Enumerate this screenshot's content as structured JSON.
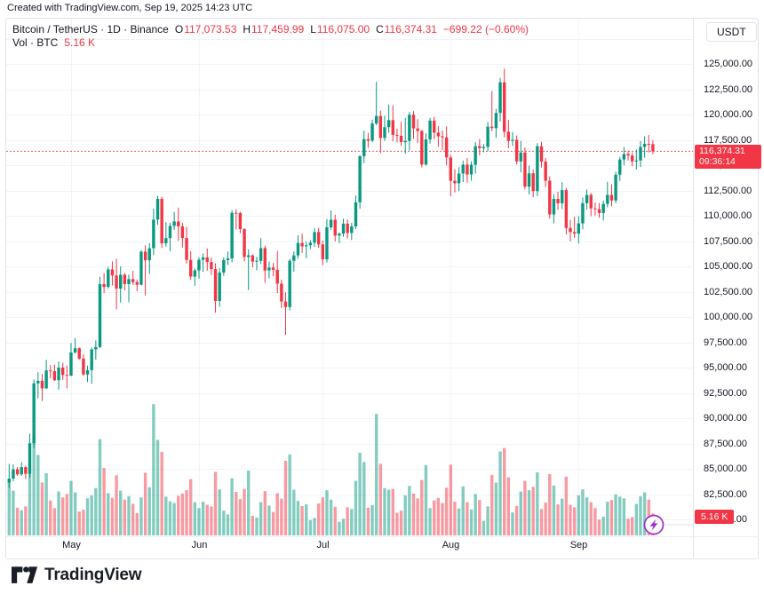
{
  "credit_line": "Created with TradingView.com, Sep 19, 2025 14:23 UTC",
  "header": {
    "symbol_line": "Bitcoin / TetherUS · 1D · Binance",
    "ohlc": {
      "o_label": "O",
      "o": "117,073.53",
      "h_label": "H",
      "h": "117,459.99",
      "l_label": "L",
      "l": "116,075.00",
      "c_label": "C",
      "c": "116,374.31",
      "change": "−699.22 (−0.60%)"
    },
    "volume_row": {
      "label": "Vol · BTC",
      "value": "5.16 K"
    }
  },
  "y_axis": {
    "currency_button": "USDT",
    "ticks": [
      {
        "price": 127500,
        "label": ""
      },
      {
        "price": 125000,
        "label": "125,000.00"
      },
      {
        "price": 122500,
        "label": "122,500.00"
      },
      {
        "price": 120000,
        "label": "120,000.00"
      },
      {
        "price": 117500,
        "label": "117,500.00"
      },
      {
        "price": 115000,
        "label": "115,000.00"
      },
      {
        "price": 112500,
        "label": "112,500.00"
      },
      {
        "price": 110000,
        "label": "110,000.00"
      },
      {
        "price": 107500,
        "label": "107,500.00"
      },
      {
        "price": 105000,
        "label": "105,000.00"
      },
      {
        "price": 102500,
        "label": "102,500.00"
      },
      {
        "price": 100000,
        "label": "100,000.00"
      },
      {
        "price": 97500,
        "label": "97,500.00"
      },
      {
        "price": 95000,
        "label": "95,000.00"
      },
      {
        "price": 92500,
        "label": "92,500.00"
      },
      {
        "price": 90000,
        "label": "90,000.00"
      },
      {
        "price": 87500,
        "label": "87,500.00"
      },
      {
        "price": 85000,
        "label": "85,000.00"
      },
      {
        "price": 82500,
        "label": "82,500.00"
      },
      {
        "price": 80000,
        "label": "80,000.00"
      }
    ],
    "price_label": {
      "value": "116,374.31",
      "countdown": "09:36:14",
      "price": 116374.31
    },
    "volume_label": {
      "value": "5.16 K"
    }
  },
  "x_axis": {
    "month_labels": {
      "5": "May",
      "6": "Jun",
      "7": "Jul",
      "8": "Aug",
      "9": "Sep"
    }
  },
  "footer": {
    "brand": "TradingView"
  },
  "colors": {
    "up": "#089981",
    "down": "#F23645",
    "vol_up": "rgba(8,153,129,0.5)",
    "vol_down": "rgba(242,54,69,0.5)",
    "grid": "#F0F3FA",
    "axis_line": "#E0E3EB",
    "label_bg": "#F23645",
    "flash": "#A72BC8"
  },
  "chart_data": {
    "type": "candlestick",
    "title": "Bitcoin / TetherUS · 1D · Binance",
    "legend": [
      "open",
      "high",
      "low",
      "close",
      "volume_kBTC"
    ],
    "start_date": "2025-04-16",
    "y_axis_range_usdt": [
      80000,
      127500
    ],
    "last_price": 116374.31,
    "last_volume_kbtc": 5.16,
    "ohlcv": [
      [
        83650,
        85480,
        83120,
        84030,
        13.0
      ],
      [
        84030,
        85440,
        83760,
        84950,
        10.5
      ],
      [
        84950,
        85170,
        84300,
        84450,
        6.5
      ],
      [
        84450,
        85670,
        84310,
        85160,
        5.9
      ],
      [
        85160,
        85310,
        83980,
        84510,
        6.8
      ],
      [
        84510,
        88470,
        84130,
        87520,
        14.5
      ],
      [
        87520,
        93820,
        87080,
        93440,
        23.0
      ],
      [
        93440,
        94540,
        91960,
        93690,
        18.9
      ],
      [
        93690,
        94350,
        91700,
        92950,
        12.4
      ],
      [
        92950,
        95770,
        92900,
        94720,
        14.6
      ],
      [
        94720,
        95250,
        93930,
        94650,
        8.2
      ],
      [
        94650,
        95300,
        93670,
        93750,
        6.4
      ],
      [
        93750,
        95600,
        92830,
        95000,
        10.3
      ],
      [
        95000,
        95490,
        93790,
        94280,
        8.9
      ],
      [
        94280,
        95200,
        92950,
        94200,
        9.7
      ],
      [
        94200,
        97440,
        94150,
        96490,
        12.8
      ],
      [
        96490,
        97910,
        96380,
        96910,
        10.1
      ],
      [
        96910,
        96980,
        95790,
        95890,
        5.6
      ],
      [
        95890,
        96320,
        94180,
        94320,
        6.0
      ],
      [
        94320,
        95190,
        93570,
        94750,
        8.7
      ],
      [
        94750,
        97000,
        93400,
        96800,
        9.4
      ],
      [
        96800,
        97680,
        95790,
        97030,
        11.1
      ],
      [
        97030,
        103970,
        96930,
        103240,
        22.6
      ],
      [
        103240,
        104330,
        102350,
        102970,
        15.8
      ],
      [
        102970,
        104960,
        102790,
        104700,
        9.9
      ],
      [
        104700,
        105500,
        103110,
        104100,
        8.8
      ],
      [
        104100,
        105760,
        100750,
        102800,
        14.1
      ],
      [
        102800,
        104990,
        101430,
        104170,
        10.5
      ],
      [
        104170,
        104350,
        102620,
        103250,
        8.4
      ],
      [
        103250,
        104190,
        101460,
        103740,
        9.2
      ],
      [
        103740,
        104550,
        103170,
        103450,
        7.4
      ],
      [
        103450,
        103710,
        102560,
        103190,
        5.2
      ],
      [
        103190,
        106600,
        103110,
        106450,
        8.9
      ],
      [
        106450,
        107070,
        102130,
        105600,
        14.7
      ],
      [
        105600,
        107300,
        104240,
        106790,
        11.3
      ],
      [
        106790,
        110700,
        106110,
        109620,
        30.8
      ],
      [
        109620,
        111970,
        109100,
        111670,
        22.4
      ],
      [
        111670,
        111880,
        106810,
        107280,
        19.6
      ],
      [
        107280,
        109370,
        106940,
        107790,
        9.1
      ],
      [
        107790,
        109300,
        106500,
        109000,
        8.0
      ],
      [
        109000,
        110380,
        108600,
        109440,
        7.6
      ],
      [
        109440,
        110800,
        107530,
        108950,
        9.3
      ],
      [
        108950,
        109300,
        106860,
        107800,
        9.8
      ],
      [
        107800,
        108900,
        105280,
        105640,
        10.6
      ],
      [
        105640,
        106500,
        103660,
        103990,
        13.2
      ],
      [
        103990,
        104790,
        103080,
        104600,
        7.8
      ],
      [
        104600,
        105900,
        103790,
        105650,
        6.4
      ],
      [
        105650,
        106280,
        104450,
        105880,
        7.9
      ],
      [
        105880,
        106780,
        104570,
        105430,
        7.2
      ],
      [
        105430,
        105880,
        104150,
        104730,
        6.8
      ],
      [
        104730,
        105300,
        100420,
        101580,
        14.9
      ],
      [
        101580,
        104850,
        101010,
        104390,
        10.8
      ],
      [
        104390,
        105880,
        104070,
        105620,
        5.8
      ],
      [
        105620,
        106460,
        105130,
        105790,
        4.9
      ],
      [
        105790,
        110550,
        105390,
        110290,
        13.4
      ],
      [
        110290,
        110630,
        108640,
        110260,
        10.2
      ],
      [
        110260,
        110390,
        108280,
        108680,
        8.5
      ],
      [
        108680,
        108760,
        105490,
        105930,
        10.9
      ],
      [
        105930,
        106670,
        102660,
        106090,
        15.2
      ],
      [
        106090,
        106180,
        104910,
        105470,
        4.6
      ],
      [
        105470,
        105940,
        104600,
        105550,
        4.2
      ],
      [
        105550,
        107790,
        105230,
        106800,
        7.8
      ],
      [
        106800,
        107030,
        103370,
        104600,
        10.4
      ],
      [
        104600,
        105480,
        103800,
        104880,
        7.0
      ],
      [
        104880,
        105340,
        104020,
        104660,
        5.5
      ],
      [
        104660,
        106530,
        102350,
        103290,
        9.9
      ],
      [
        103290,
        103690,
        100870,
        101530,
        8.6
      ],
      [
        101530,
        102430,
        98220,
        100980,
        17.5
      ],
      [
        100980,
        105740,
        100640,
        105550,
        19.0
      ],
      [
        105550,
        106480,
        104480,
        106080,
        10.7
      ],
      [
        106080,
        108070,
        105750,
        107310,
        8.1
      ],
      [
        107310,
        108230,
        106330,
        106980,
        6.9
      ],
      [
        106980,
        107480,
        105810,
        107080,
        7.3
      ],
      [
        107080,
        107600,
        106710,
        107340,
        3.6
      ],
      [
        107340,
        108790,
        106920,
        108390,
        4.1
      ],
      [
        108390,
        108800,
        106830,
        107170,
        7.5
      ],
      [
        107170,
        107550,
        105110,
        105700,
        8.9
      ],
      [
        105700,
        109680,
        105370,
        108860,
        10.6
      ],
      [
        108860,
        110530,
        108610,
        109600,
        8.4
      ],
      [
        109600,
        110110,
        107470,
        108040,
        6.7
      ],
      [
        108040,
        108340,
        107300,
        108230,
        3.2
      ],
      [
        108230,
        109710,
        107930,
        109220,
        3.9
      ],
      [
        109220,
        109620,
        107750,
        108300,
        6.6
      ],
      [
        108300,
        109300,
        107600,
        108950,
        6.2
      ],
      [
        108950,
        112000,
        108680,
        111330,
        12.8
      ],
      [
        111330,
        116000,
        110700,
        115880,
        19.4
      ],
      [
        115880,
        118400,
        115190,
        117570,
        17.2
      ],
      [
        117570,
        118190,
        116700,
        117420,
        6.5
      ],
      [
        117420,
        119500,
        117270,
        119120,
        7.1
      ],
      [
        119120,
        123240,
        118940,
        119850,
        28.5
      ],
      [
        119850,
        120400,
        116200,
        117680,
        16.8
      ],
      [
        117680,
        119890,
        117400,
        118750,
        11.1
      ],
      [
        118750,
        120990,
        118190,
        119450,
        10.7
      ],
      [
        119450,
        120900,
        117350,
        117990,
        10.9
      ],
      [
        117990,
        118600,
        117250,
        117900,
        5.3
      ],
      [
        117900,
        119300,
        116900,
        117280,
        5.8
      ],
      [
        117280,
        119650,
        116140,
        117400,
        9.4
      ],
      [
        117400,
        120250,
        116450,
        119980,
        11.6
      ],
      [
        119980,
        120330,
        117600,
        118630,
        9.8
      ],
      [
        118630,
        119550,
        117200,
        118370,
        8.7
      ],
      [
        118370,
        118480,
        114780,
        115060,
        13.0
      ],
      [
        115060,
        118150,
        114960,
        117540,
        16.5
      ],
      [
        117540,
        119680,
        117130,
        119400,
        6.4
      ],
      [
        119400,
        119790,
        117550,
        118210,
        8.2
      ],
      [
        118210,
        118850,
        116820,
        117850,
        8.8
      ],
      [
        117850,
        118420,
        116470,
        117740,
        7.6
      ],
      [
        117740,
        118820,
        114980,
        115760,
        11.2
      ],
      [
        115760,
        116000,
        111920,
        113450,
        16.6
      ],
      [
        113450,
        114600,
        112300,
        113210,
        7.9
      ],
      [
        113210,
        114800,
        112450,
        114170,
        6.3
      ],
      [
        114170,
        115450,
        113330,
        115050,
        11.5
      ],
      [
        115050,
        115700,
        113270,
        114080,
        7.8
      ],
      [
        114080,
        115370,
        113480,
        115040,
        6.1
      ],
      [
        115040,
        117280,
        114160,
        116880,
        9.7
      ],
      [
        116880,
        117580,
        115960,
        116680,
        8.3
      ],
      [
        116680,
        117070,
        116280,
        116800,
        3.4
      ],
      [
        116800,
        119280,
        116380,
        118800,
        6.8
      ],
      [
        118800,
        122330,
        118340,
        118660,
        14.2
      ],
      [
        118660,
        120560,
        117700,
        120160,
        12.4
      ],
      [
        120160,
        123620,
        119310,
        123190,
        19.7
      ],
      [
        123190,
        124530,
        117760,
        118300,
        20.5
      ],
      [
        118300,
        119480,
        116670,
        117400,
        13.6
      ],
      [
        117400,
        118280,
        116900,
        117500,
        5.4
      ],
      [
        117500,
        117940,
        115060,
        115370,
        6.9
      ],
      [
        115370,
        117390,
        114300,
        116250,
        10.3
      ],
      [
        116250,
        116750,
        112600,
        112870,
        12.8
      ],
      [
        112870,
        114950,
        112120,
        114190,
        10.6
      ],
      [
        114190,
        114580,
        111830,
        112440,
        11.4
      ],
      [
        112440,
        117170,
        111950,
        116870,
        14.8
      ],
      [
        116870,
        117300,
        114770,
        115350,
        6.2
      ],
      [
        115350,
        115700,
        112830,
        113460,
        7.7
      ],
      [
        113460,
        113900,
        109720,
        110130,
        14.4
      ],
      [
        110130,
        112130,
        109260,
        111660,
        11.7
      ],
      [
        111660,
        112370,
        110570,
        111240,
        7.3
      ],
      [
        111240,
        113320,
        110680,
        112530,
        8.6
      ],
      [
        112530,
        112760,
        108150,
        108790,
        13.8
      ],
      [
        108790,
        109570,
        107480,
        108390,
        7.2
      ],
      [
        108390,
        109900,
        107820,
        108240,
        6.6
      ],
      [
        108240,
        109970,
        107270,
        109250,
        9.4
      ],
      [
        109250,
        111790,
        108660,
        111240,
        10.8
      ],
      [
        111240,
        112590,
        110620,
        112060,
        8.9
      ],
      [
        112060,
        112250,
        109960,
        110730,
        7.8
      ],
      [
        110730,
        111320,
        110010,
        110650,
        6.4
      ],
      [
        110650,
        111250,
        109800,
        110270,
        3.7
      ],
      [
        110270,
        111490,
        109530,
        111170,
        4.4
      ],
      [
        111170,
        113350,
        110820,
        112060,
        7.9
      ],
      [
        112060,
        113120,
        110920,
        111510,
        8.3
      ],
      [
        111510,
        114340,
        111240,
        114060,
        9.6
      ],
      [
        114060,
        115800,
        113430,
        115560,
        9.1
      ],
      [
        115560,
        116780,
        114980,
        116100,
        8.7
      ],
      [
        116100,
        116420,
        115460,
        115950,
        3.9
      ],
      [
        115950,
        116250,
        114880,
        115370,
        4.3
      ],
      [
        115370,
        116550,
        114570,
        115460,
        7.4
      ],
      [
        115460,
        117370,
        114820,
        116800,
        9.2
      ],
      [
        116800,
        117850,
        115730,
        117100,
        10.1
      ],
      [
        117100,
        117980,
        116260,
        117080,
        8.4
      ],
      [
        117073.53,
        117459.99,
        116075.0,
        116374.31,
        5.16
      ]
    ]
  }
}
